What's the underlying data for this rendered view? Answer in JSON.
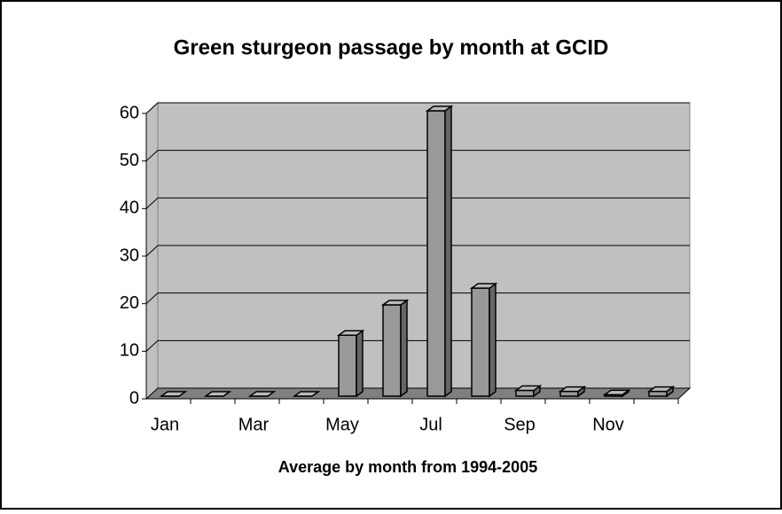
{
  "chart_data": {
    "type": "bar3d",
    "title": "Green sturgeon passage by month at GCID",
    "x_label": "Average by month from 1994-2005",
    "categories": [
      "Jan",
      null,
      "Mar",
      null,
      "May",
      null,
      "Jul",
      null,
      "Sep",
      null,
      "Nov",
      null
    ],
    "values": [
      0,
      0,
      0,
      0,
      12.8,
      19.2,
      60,
      22.7,
      1.2,
      1,
      0.3,
      1
    ],
    "color": "#999999",
    "wall_color": "#c0c0c0",
    "floor_color": "#808080",
    "ylim": [
      0,
      60
    ],
    "yticks": [
      0,
      10,
      20,
      30,
      40,
      50,
      60
    ],
    "grid": true
  }
}
